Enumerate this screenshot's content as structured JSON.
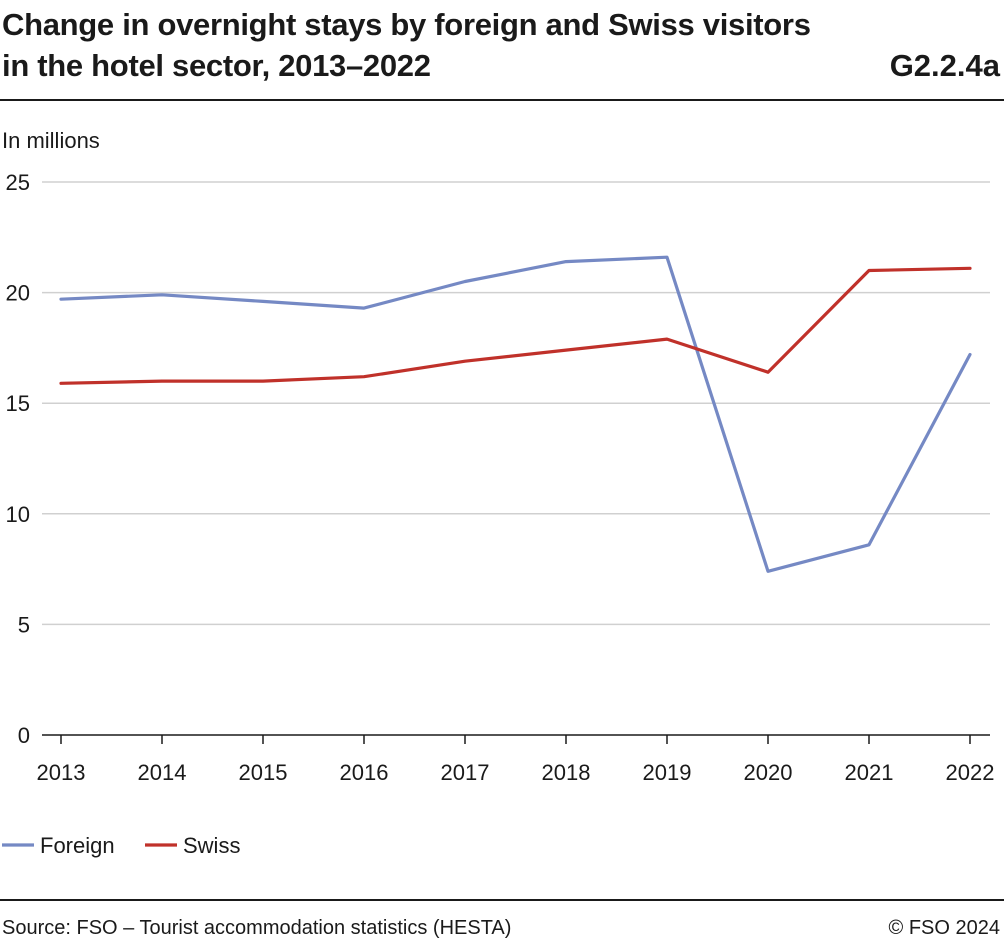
{
  "header": {
    "title_line1": "Change in overnight stays by foreign and Swiss visitors",
    "title_line2": "in the hotel sector, 2013–2022",
    "code": "G2.2.4a"
  },
  "footer": {
    "source": "Source: FSO – Tourist accommodation statistics (HESTA)",
    "copyright": "© FSO 2024"
  },
  "chart_data": {
    "type": "line",
    "ylabel": "In millions",
    "ylim": [
      0,
      25
    ],
    "yticks": [
      0,
      5,
      10,
      15,
      20,
      25
    ],
    "categories": [
      "2013",
      "2014",
      "2015",
      "2016",
      "2017",
      "2018",
      "2019",
      "2020",
      "2021",
      "2022"
    ],
    "series": [
      {
        "name": "Foreign",
        "color": "#7589c4",
        "values": [
          19.7,
          19.9,
          19.6,
          19.3,
          20.5,
          21.4,
          21.6,
          7.4,
          8.6,
          17.2
        ]
      },
      {
        "name": "Swiss",
        "color": "#c0312a",
        "values": [
          15.9,
          16.0,
          16.0,
          16.2,
          16.9,
          17.4,
          17.9,
          16.4,
          21.0,
          21.1
        ]
      }
    ],
    "grid": true,
    "legend": "bottom-left"
  }
}
